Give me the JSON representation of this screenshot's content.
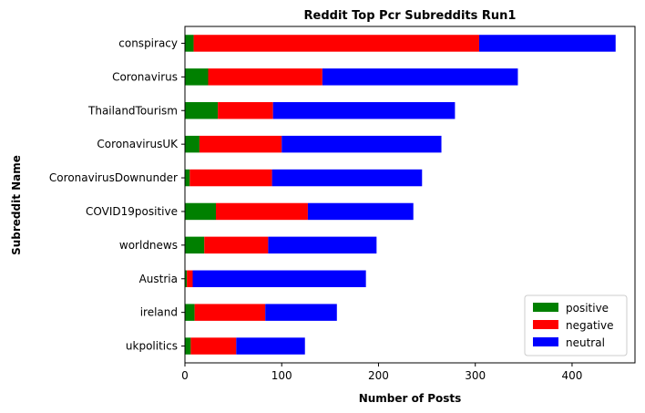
{
  "chart_data": {
    "type": "bar",
    "orientation": "horizontal",
    "stacked": true,
    "title": "Reddit Top Pcr Subreddits Run1",
    "xlabel": "Number of Posts",
    "ylabel": "Subreddit Name",
    "xlim": [
      0,
      465
    ],
    "xticks": [
      0,
      100,
      200,
      300,
      400
    ],
    "grid": false,
    "legend_position": "lower-right",
    "categories": [
      "ukpolitics",
      "ireland",
      "Austria",
      "worldnews",
      "COVID19positive",
      "CoronavirusDownunder",
      "CoronavirusUK",
      "ThailandTourism",
      "Coronavirus",
      "conspiracy"
    ],
    "series": [
      {
        "name": "positive",
        "color": "#008000",
        "values": [
          6,
          10,
          2,
          20,
          32,
          5,
          15,
          34,
          24,
          9
        ]
      },
      {
        "name": "negative",
        "color": "#ff0000",
        "values": [
          47,
          73,
          6,
          66,
          95,
          85,
          85,
          57,
          118,
          295
        ]
      },
      {
        "name": "neutral",
        "color": "#0000ff",
        "values": [
          71,
          74,
          179,
          112,
          109,
          155,
          165,
          188,
          202,
          141
        ]
      }
    ]
  }
}
